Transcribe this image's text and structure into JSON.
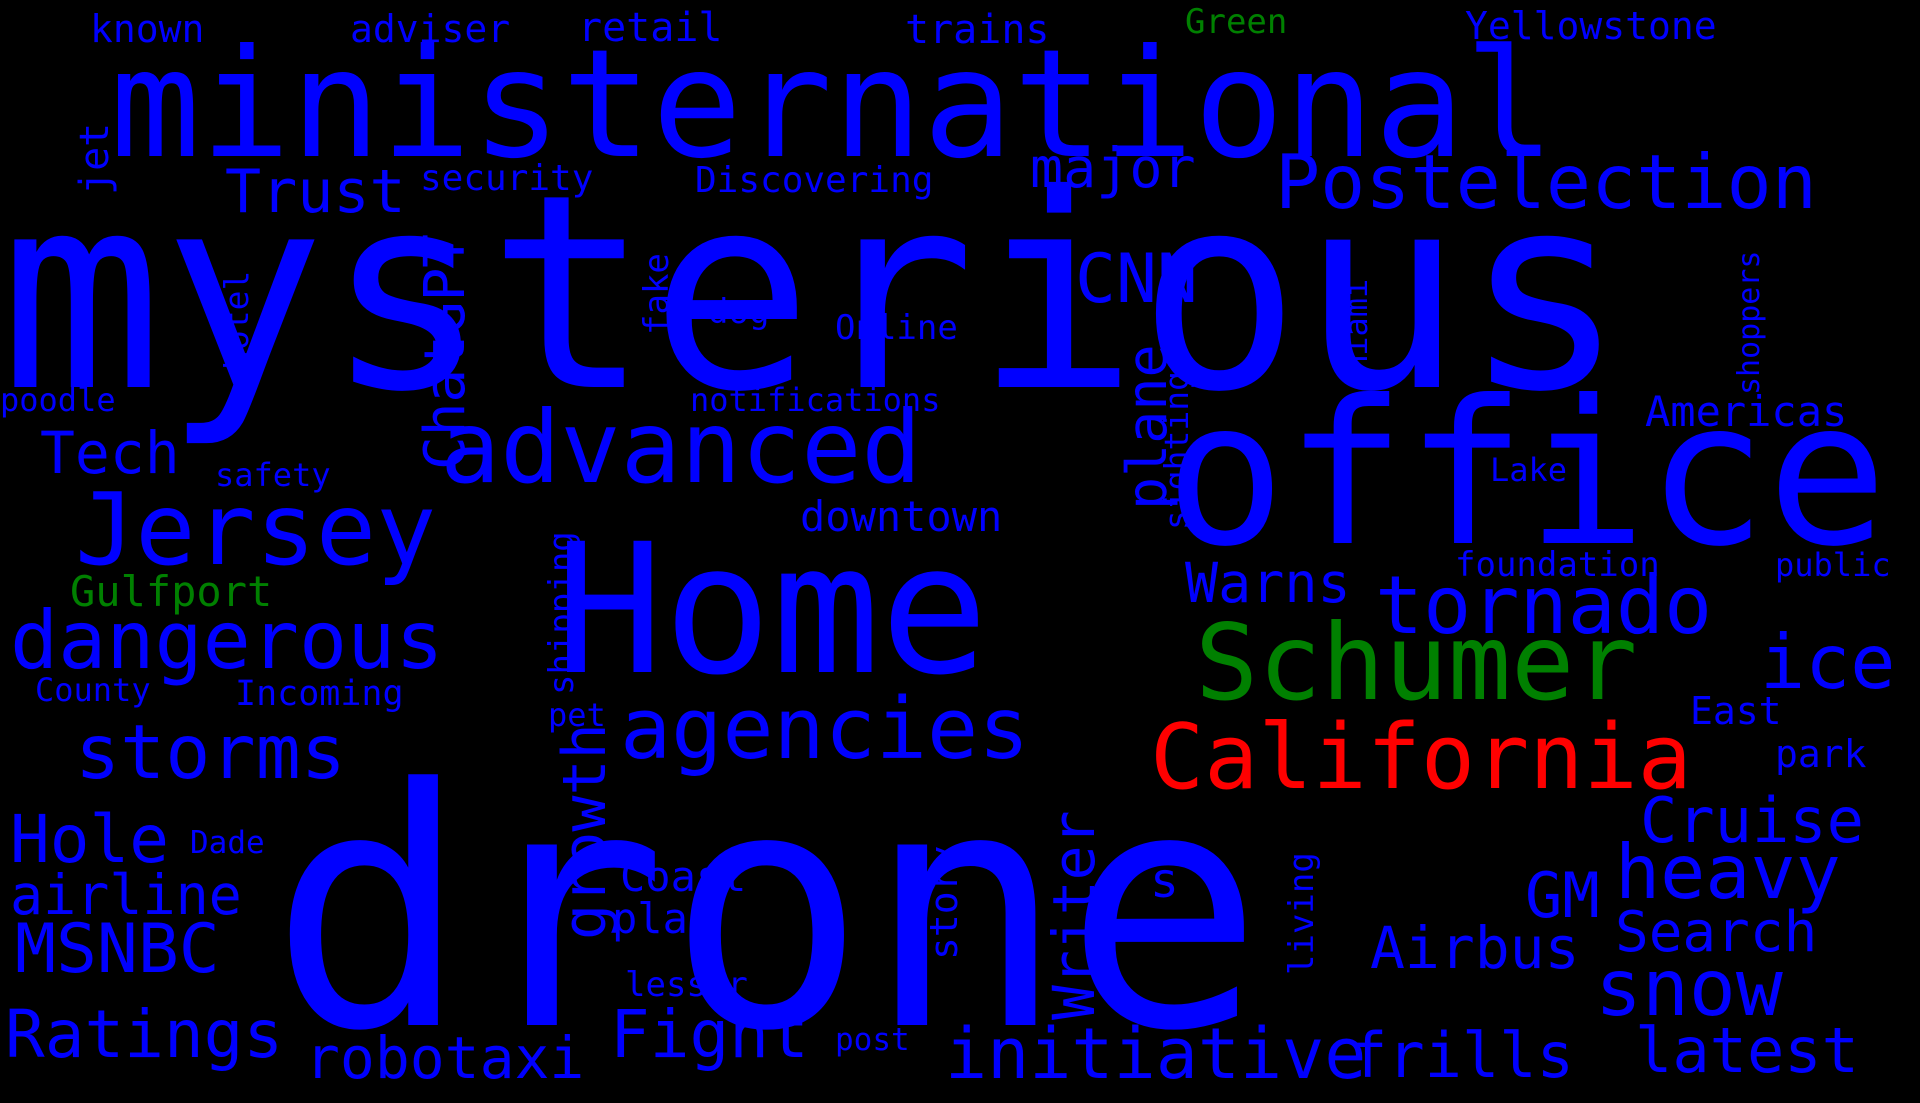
{
  "colors": {
    "background": "#000000",
    "blue": "#0000ff",
    "green": "#008000",
    "red": "#ff0000"
  },
  "words": [
    {
      "text": "drone",
      "color": "blue"
    },
    {
      "text": "mysterious",
      "color": "blue"
    },
    {
      "text": "ministernational",
      "color": "blue"
    },
    {
      "text": "Home",
      "color": "blue"
    },
    {
      "text": "office",
      "color": "blue"
    },
    {
      "text": "Jersey",
      "color": "blue"
    },
    {
      "text": "advanced",
      "color": "blue"
    },
    {
      "text": "Schumer",
      "color": "green"
    },
    {
      "text": "California",
      "color": "red"
    },
    {
      "text": "dangerous",
      "color": "blue"
    },
    {
      "text": "agencies",
      "color": "blue"
    },
    {
      "text": "tornado",
      "color": "blue"
    },
    {
      "text": "Postelection",
      "color": "blue"
    },
    {
      "text": "storms",
      "color": "blue"
    },
    {
      "text": "heavy",
      "color": "blue"
    },
    {
      "text": "initiative",
      "color": "blue"
    },
    {
      "text": "frills",
      "color": "blue"
    },
    {
      "text": "latest",
      "color": "blue"
    },
    {
      "text": "snow",
      "color": "blue"
    },
    {
      "text": "ice",
      "color": "blue"
    },
    {
      "text": "Ratings",
      "color": "blue"
    },
    {
      "text": "robotaxi",
      "color": "blue"
    },
    {
      "text": "Fight",
      "color": "blue"
    },
    {
      "text": "Cruise",
      "color": "blue"
    },
    {
      "text": "MSNBC",
      "color": "blue"
    },
    {
      "text": "Hole",
      "color": "blue"
    },
    {
      "text": "airline",
      "color": "blue"
    },
    {
      "text": "Search",
      "color": "blue"
    },
    {
      "text": "Airbus",
      "color": "blue"
    },
    {
      "text": "GM",
      "color": "blue"
    },
    {
      "text": "Tech",
      "color": "blue"
    },
    {
      "text": "Trust",
      "color": "blue"
    },
    {
      "text": "major",
      "color": "blue"
    },
    {
      "text": "CNN",
      "color": "blue"
    },
    {
      "text": "Warns",
      "color": "blue"
    },
    {
      "text": "growth",
      "color": "blue"
    },
    {
      "text": "Writer",
      "color": "blue"
    },
    {
      "text": "ChatGPT",
      "color": "blue"
    },
    {
      "text": "plane",
      "color": "blue"
    },
    {
      "text": "downtown",
      "color": "blue"
    },
    {
      "text": "Americas",
      "color": "blue"
    },
    {
      "text": "Gulfport",
      "color": "green"
    },
    {
      "text": "Coast",
      "color": "blue"
    },
    {
      "text": "plan",
      "color": "blue"
    },
    {
      "text": "known",
      "color": "blue"
    },
    {
      "text": "adviser",
      "color": "blue"
    },
    {
      "text": "retail",
      "color": "blue"
    },
    {
      "text": "trains",
      "color": "blue"
    },
    {
      "text": "Green",
      "color": "green"
    },
    {
      "text": "Yellowstone",
      "color": "blue"
    },
    {
      "text": "jet",
      "color": "blue"
    },
    {
      "text": "security",
      "color": "blue"
    },
    {
      "text": "Discovering",
      "color": "blue"
    },
    {
      "text": "fake",
      "color": "blue"
    },
    {
      "text": "dog",
      "color": "blue"
    },
    {
      "text": "Online",
      "color": "blue"
    },
    {
      "text": "hotel",
      "color": "blue"
    },
    {
      "text": "poodle",
      "color": "blue"
    },
    {
      "text": "notifications",
      "color": "blue"
    },
    {
      "text": "safety",
      "color": "blue"
    },
    {
      "text": "sightings",
      "color": "blue"
    },
    {
      "text": "Miami",
      "color": "blue"
    },
    {
      "text": "shoppers",
      "color": "blue"
    },
    {
      "text": "Lake",
      "color": "blue"
    },
    {
      "text": "foundation",
      "color": "blue"
    },
    {
      "text": "public",
      "color": "blue"
    },
    {
      "text": "shipping",
      "color": "blue"
    },
    {
      "text": "County",
      "color": "blue"
    },
    {
      "text": "Incoming",
      "color": "blue"
    },
    {
      "text": "pet",
      "color": "blue"
    },
    {
      "text": "East",
      "color": "blue"
    },
    {
      "text": "park",
      "color": "blue"
    },
    {
      "text": "Dade",
      "color": "blue"
    },
    {
      "text": "s",
      "color": "blue"
    },
    {
      "text": "story",
      "color": "blue"
    },
    {
      "text": "living",
      "color": "blue"
    },
    {
      "text": "lesser",
      "color": "blue"
    },
    {
      "text": "post",
      "color": "blue"
    }
  ]
}
